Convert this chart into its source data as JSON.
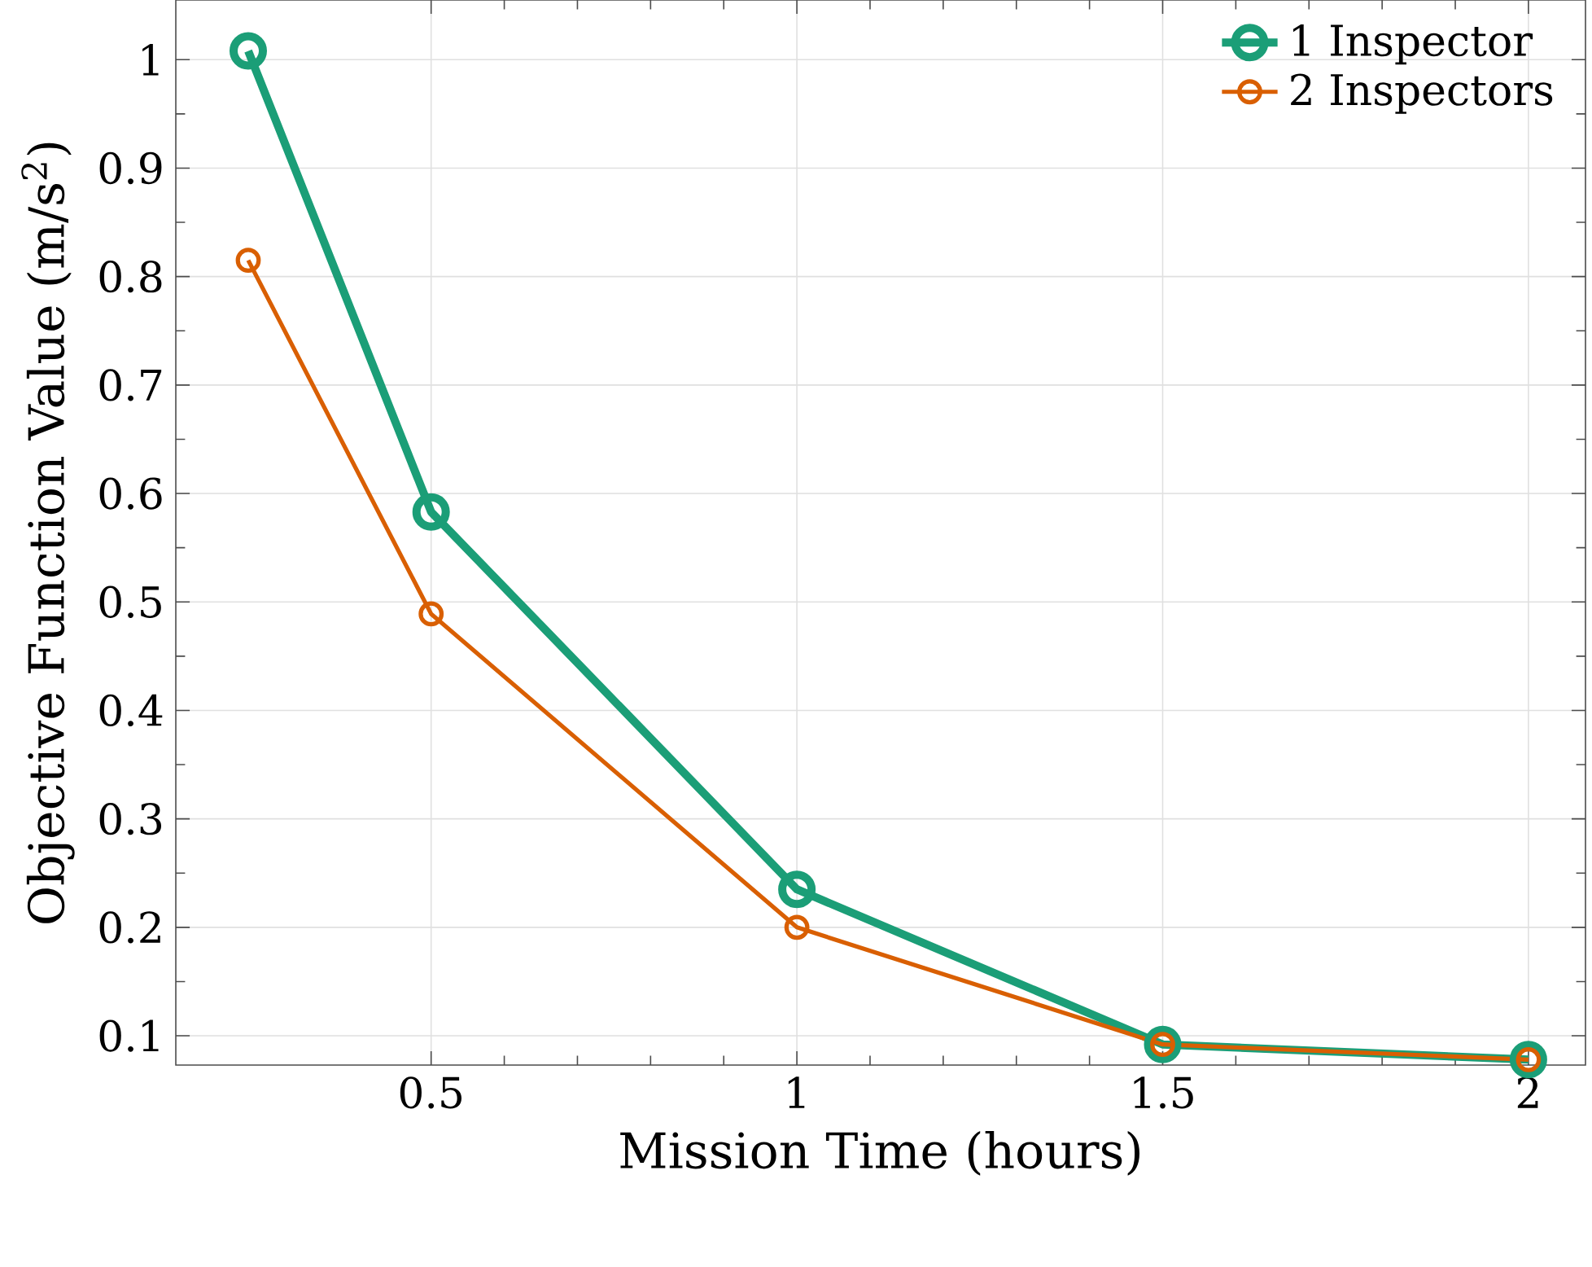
{
  "chart_data": {
    "type": "line",
    "xlabel": "Mission Time (hours)",
    "ylabel": "Objective Function Value (m/s$^{2}$)",
    "x": [
      0.25,
      0.5,
      1,
      1.5,
      2
    ],
    "series": [
      {
        "name": "1 Inspector",
        "color": "#1b9e77",
        "values": [
          1.008,
          0.583,
          0.235,
          0.092,
          0.078
        ]
      },
      {
        "name": "2 Inspectors",
        "color": "#d95f02",
        "values": [
          0.815,
          0.489,
          0.2,
          0.092,
          0.078
        ]
      }
    ],
    "xlim": [
      0.151,
      2.078
    ],
    "ylim": [
      0.073,
      1.055
    ],
    "xticks": [
      0.5,
      1,
      1.5,
      2
    ],
    "yticks": [
      0.1,
      0.2,
      0.3,
      0.4,
      0.5,
      0.6,
      0.7,
      0.8,
      0.9,
      1
    ],
    "grid": true,
    "legend": "top right",
    "marker": "circle",
    "line_style": "solid"
  }
}
